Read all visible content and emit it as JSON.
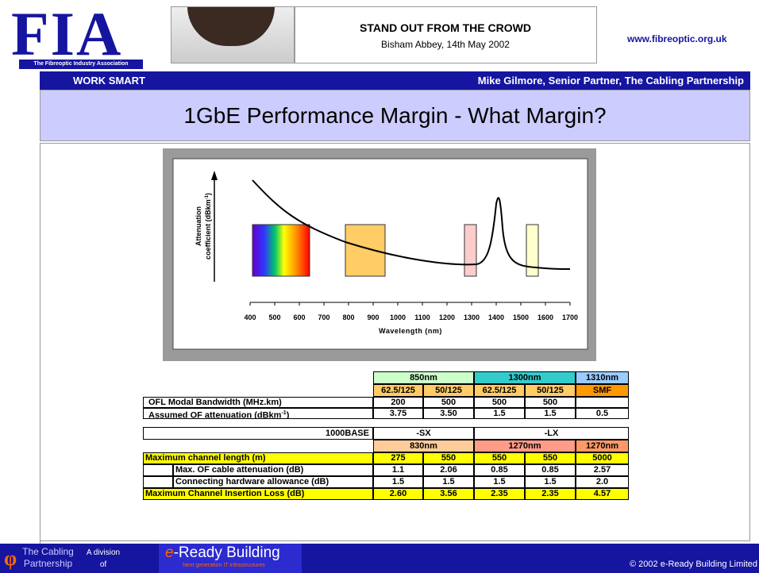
{
  "header": {
    "logo": "FIA",
    "logo_sub": "The Fibreoptic Industry Association",
    "event": "STAND OUT FROM THE CROWD",
    "event_sub": "Bisham Abbey, 14th May 2002",
    "url": "www.fibreoptic.org.uk"
  },
  "bar": {
    "left": "WORK SMART",
    "right": "Mike Gilmore, Senior Partner, The Cabling Partnership"
  },
  "title": "1GbE Performance Margin - What Margin?",
  "figure": {
    "y_label": "Attenuation",
    "y_label2": [
      "coefficient (dBkm",
      "-1",
      ")"
    ],
    "x_label": "Wavelength (nm)",
    "x_ticks": [
      400,
      500,
      600,
      700,
      800,
      900,
      1000,
      1100,
      1200,
      1300,
      1400,
      1500,
      1600,
      1700
    ]
  },
  "table1": {
    "head1": [
      "850nm",
      "1300nm",
      "1310nm"
    ],
    "head2": [
      "62.5/125",
      "50/125",
      "62.5/125",
      "50/125",
      "SMF"
    ],
    "row1": {
      "label": "OFL Modal Bandwidth (MHz.km)",
      "cells": [
        "200",
        "500",
        "500",
        "500"
      ]
    },
    "row2": {
      "label": [
        "Assumed OF attenuation (dBkm",
        "-1",
        ")"
      ],
      "cells": [
        "3.75",
        "3.50",
        "1.5",
        "1.5",
        "0.5"
      ]
    }
  },
  "table2": {
    "head1": [
      "1000BASE",
      "-SX",
      "-LX"
    ],
    "head2": [
      "830nm",
      "1270nm",
      "1270nm"
    ],
    "rows": [
      {
        "label": "Maximum channel length (m)",
        "cells": [
          "275",
          "550",
          "550",
          "550",
          "5000"
        ]
      },
      {
        "label": "Max. OF cable attenuation (dB)",
        "cells": [
          "1.1",
          "2.06",
          "0.85",
          "0.85",
          "2.57"
        ]
      },
      {
        "label": "Connecting hardware allowance (dB)",
        "cells": [
          "1.5",
          "1.5",
          "1.5",
          "1.5",
          "2.0"
        ]
      },
      {
        "label": "Maximum Channel Insertion Loss (dB)",
        "cells": [
          "2.60",
          "3.56",
          "2.35",
          "2.35",
          "4.57"
        ]
      }
    ]
  },
  "footer": {
    "logo": "φ",
    "cp1": "The Cabling",
    "cp2": "Partnership",
    "div1": "A division",
    "div2": "of",
    "erb_e": "e",
    "erb": "-Ready Building",
    "erb_sub": "Next generation IT infrastructures",
    "copyright": "© 2002 e-Ready Building Limited"
  }
}
